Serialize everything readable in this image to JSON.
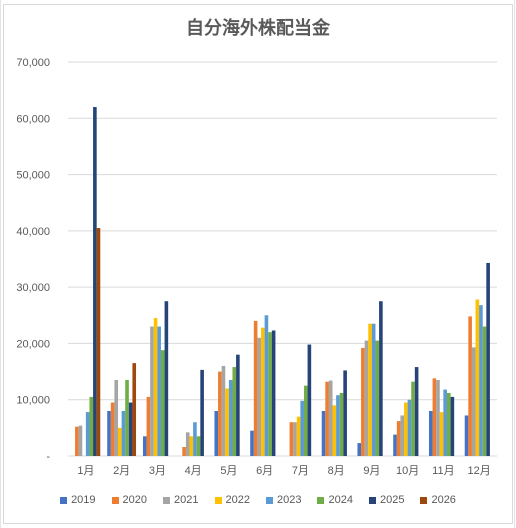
{
  "chart_data": {
    "type": "bar",
    "title": "自分海外株配当金",
    "categories": [
      "1月",
      "2月",
      "3月",
      "4月",
      "5月",
      "6月",
      "7月",
      "8月",
      "9月",
      "10月",
      "11月",
      "12月"
    ],
    "ylim": [
      0,
      70000
    ],
    "yticks": [
      "-",
      "10,000",
      "20,000",
      "30,000",
      "40,000",
      "50,000",
      "60,000",
      "70,000"
    ],
    "grid": true,
    "legend": "bottom",
    "series": [
      {
        "name": "2019",
        "color": "#4472C4",
        "values": [
          0,
          8000,
          3500,
          0,
          8000,
          4500,
          0,
          8000,
          2300,
          3800,
          8000,
          7200
        ]
      },
      {
        "name": "2020",
        "color": "#ED7D31",
        "values": [
          5200,
          9500,
          10500,
          1600,
          15000,
          24000,
          6000,
          13200,
          19200,
          6200,
          13800,
          24800
        ]
      },
      {
        "name": "2021",
        "color": "#A5A5A5",
        "values": [
          5400,
          13500,
          23000,
          4200,
          16000,
          21000,
          6000,
          13400,
          20500,
          7200,
          13500,
          19300
        ]
      },
      {
        "name": "2022",
        "color": "#FFC000",
        "values": [
          0,
          5000,
          24500,
          3500,
          12000,
          22800,
          7000,
          9000,
          23500,
          9500,
          7800,
          27800
        ]
      },
      {
        "name": "2023",
        "color": "#5B9BD5",
        "values": [
          7800,
          8000,
          23000,
          6000,
          13500,
          25000,
          9800,
          10800,
          23500,
          10000,
          11800,
          26800
        ]
      },
      {
        "name": "2024",
        "color": "#70AD47",
        "values": [
          10500,
          13500,
          18800,
          3500,
          15800,
          22000,
          12500,
          11200,
          20500,
          13200,
          11200,
          23000
        ]
      },
      {
        "name": "2025",
        "color": "#264478",
        "values": [
          62000,
          9500,
          27500,
          15300,
          18000,
          22300,
          19800,
          15200,
          27500,
          15800,
          10500,
          34300
        ]
      },
      {
        "name": "2026",
        "color": "#9E480E",
        "values": [
          40500,
          16500,
          0,
          0,
          0,
          0,
          0,
          0,
          0,
          0,
          0,
          0
        ]
      }
    ]
  }
}
